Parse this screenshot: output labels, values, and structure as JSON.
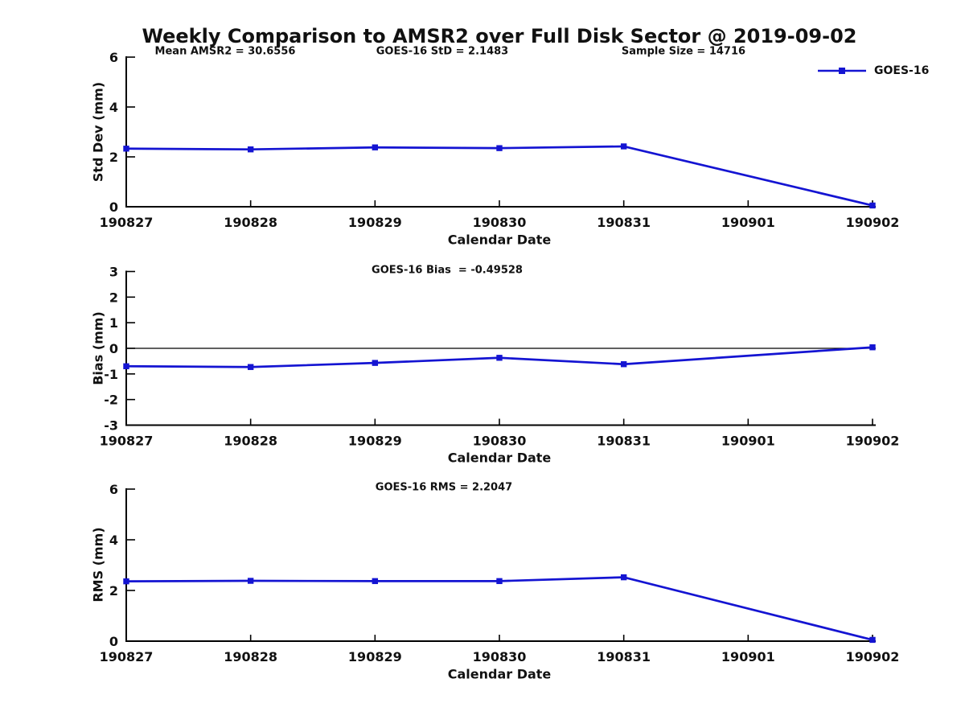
{
  "title": "Weekly Comparison to AMSR2 over Full Disk Sector @ 2019-09-02",
  "legend": {
    "label": "GOES-16"
  },
  "stats": {
    "mean_amsr2": 30.6556,
    "goes16_std": 2.1483,
    "sample_size": 14716,
    "goes16_bias": -0.49528,
    "goes16_rms": 2.2047
  },
  "chart_data": [
    {
      "type": "line",
      "ylabel": "Std Dev (mm)",
      "xlabel": "Calendar Date",
      "categories": [
        "190827",
        "190828",
        "190829",
        "190830",
        "190831",
        "190901",
        "190902"
      ],
      "yticks": [
        0,
        2,
        4,
        6
      ],
      "ylim": [
        0,
        6
      ],
      "grid": false,
      "zero_line": false,
      "legend_position": "top-right",
      "annotations": [
        "Mean AMSR2 = 30.6556",
        "GOES-16 StD = 2.1483",
        "Sample Size = 14716"
      ],
      "series": [
        {
          "name": "GOES-16",
          "color": "#1414d2",
          "marker": "square",
          "points": [
            {
              "x": "190827",
              "y": 2.33
            },
            {
              "x": "190828",
              "y": 2.3
            },
            {
              "x": "190829",
              "y": 2.38
            },
            {
              "x": "190830",
              "y": 2.35
            },
            {
              "x": "190831",
              "y": 2.42
            },
            {
              "x": "190902",
              "y": 0.05
            }
          ]
        }
      ]
    },
    {
      "type": "line",
      "ylabel": "Bias (mm)",
      "xlabel": "Calendar Date",
      "categories": [
        "190827",
        "190828",
        "190829",
        "190830",
        "190831",
        "190901",
        "190902"
      ],
      "yticks": [
        -3,
        -2,
        -1,
        0,
        1,
        2,
        3
      ],
      "ylim": [
        -3,
        3
      ],
      "grid": false,
      "zero_line": true,
      "annotations": [
        "GOES-16 Bias  = -0.49528"
      ],
      "series": [
        {
          "name": "GOES-16",
          "color": "#1414d2",
          "marker": "square",
          "points": [
            {
              "x": "190827",
              "y": -0.7
            },
            {
              "x": "190828",
              "y": -0.73
            },
            {
              "x": "190829",
              "y": -0.57
            },
            {
              "x": "190830",
              "y": -0.37
            },
            {
              "x": "190831",
              "y": -0.62
            },
            {
              "x": "190902",
              "y": 0.04
            }
          ]
        }
      ]
    },
    {
      "type": "line",
      "ylabel": "RMS (mm)",
      "xlabel": "Calendar Date",
      "categories": [
        "190827",
        "190828",
        "190829",
        "190830",
        "190831",
        "190901",
        "190902"
      ],
      "yticks": [
        0,
        2,
        4,
        6
      ],
      "ylim": [
        0,
        6
      ],
      "grid": false,
      "zero_line": false,
      "annotations": [
        "GOES-16 RMS = 2.2047"
      ],
      "series": [
        {
          "name": "GOES-16",
          "color": "#1414d2",
          "marker": "square",
          "points": [
            {
              "x": "190827",
              "y": 2.36
            },
            {
              "x": "190828",
              "y": 2.38
            },
            {
              "x": "190829",
              "y": 2.37
            },
            {
              "x": "190830",
              "y": 2.37
            },
            {
              "x": "190831",
              "y": 2.52
            },
            {
              "x": "190902",
              "y": 0.05
            }
          ]
        }
      ]
    }
  ]
}
